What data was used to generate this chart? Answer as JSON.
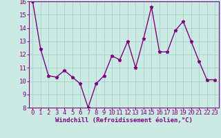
{
  "x": [
    0,
    1,
    2,
    3,
    4,
    5,
    6,
    7,
    8,
    9,
    10,
    11,
    12,
    13,
    14,
    15,
    16,
    17,
    18,
    19,
    20,
    21,
    22,
    23
  ],
  "y": [
    16.0,
    12.4,
    10.4,
    10.3,
    10.8,
    10.3,
    9.8,
    8.0,
    9.8,
    10.4,
    11.9,
    11.6,
    13.0,
    11.0,
    13.2,
    15.6,
    12.2,
    12.2,
    13.8,
    14.5,
    13.0,
    11.5,
    10.1,
    10.1
  ],
  "line_color": "#800080",
  "marker": "*",
  "marker_size": 3.5,
  "bg_color": "#cceae4",
  "grid_color": "#aad4cc",
  "xlabel": "Windchill (Refroidissement éolien,°C)",
  "xlabel_color": "#800080",
  "tick_color": "#800080",
  "spine_color": "#800080",
  "ylim": [
    8,
    16
  ],
  "xlim": [
    -0.5,
    23.5
  ],
  "yticks": [
    8,
    9,
    10,
    11,
    12,
    13,
    14,
    15,
    16
  ],
  "xticks": [
    0,
    1,
    2,
    3,
    4,
    5,
    6,
    7,
    8,
    9,
    10,
    11,
    12,
    13,
    14,
    15,
    16,
    17,
    18,
    19,
    20,
    21,
    22,
    23
  ],
  "xlabel_fontsize": 6.5,
  "tick_fontsize": 6.5,
  "line_width": 1.0
}
